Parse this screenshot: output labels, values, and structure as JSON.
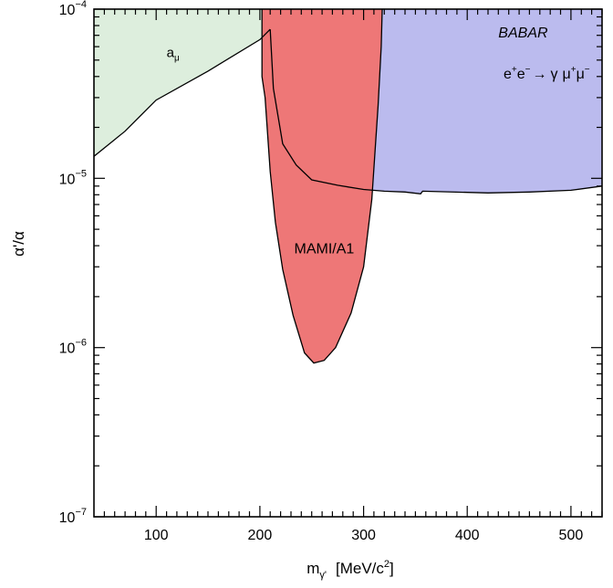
{
  "chart_data": {
    "type": "area",
    "title": "",
    "xlabel": {
      "base": "m",
      "sub": "γ'",
      "unit_open": "[MeV/c",
      "unit_sup": "2",
      "unit_close": "]"
    },
    "ylabel": "α'/α",
    "xlim": [
      40,
      530
    ],
    "ylim": [
      1e-07,
      0.0001
    ],
    "yscale": "log",
    "grid": false,
    "x_ticks": [
      100,
      200,
      300,
      400,
      500
    ],
    "x_tick_labels": [
      "100",
      "200",
      "300",
      "400",
      "500"
    ],
    "y_ticks": [
      {
        "value": 1e-07,
        "base": "10",
        "exp": "−7"
      },
      {
        "value": 1e-06,
        "base": "10",
        "exp": "−6"
      },
      {
        "value": 1e-05,
        "base": "10",
        "exp": "−5"
      },
      {
        "value": 0.0001,
        "base": "10",
        "exp": "−4"
      }
    ],
    "series": [
      {
        "name": "a_mu",
        "color": "#ddeedd",
        "upper": "top",
        "boundary": [
          [
            40,
            1.35e-05
          ],
          [
            70,
            1.9e-05
          ],
          [
            100,
            2.9e-05
          ],
          [
            150,
            4.3e-05
          ],
          [
            200,
            6.6e-05
          ],
          [
            210,
            7.6e-05
          ]
        ]
      },
      {
        "name": "BABAR",
        "color": "#bbbbee",
        "upper": "top",
        "boundary": [
          [
            210,
            7.6e-05
          ],
          [
            213,
            3.4e-05
          ],
          [
            222,
            1.6e-05
          ],
          [
            235,
            1.2e-05
          ],
          [
            250,
            9.8e-06
          ],
          [
            275,
            9.1e-06
          ],
          [
            300,
            8.6e-06
          ],
          [
            320,
            8.4e-06
          ],
          [
            340,
            8.3e-06
          ],
          [
            355,
            8.1e-06
          ],
          [
            357,
            8.4e-06
          ],
          [
            420,
            8.2e-06
          ],
          [
            460,
            8.3e-06
          ],
          [
            500,
            8.5e-06
          ],
          [
            530,
            9e-06
          ]
        ]
      },
      {
        "name": "MAMI/A1",
        "color": "#ee7777",
        "boundary": [
          [
            202,
            0.0001
          ],
          [
            202,
            4e-05
          ],
          [
            205,
            3e-05
          ],
          [
            210,
            1.1e-05
          ],
          [
            215,
            5.5e-06
          ],
          [
            222,
            2.9e-06
          ],
          [
            232,
            1.55e-06
          ],
          [
            243,
            9.3e-07
          ],
          [
            252,
            8.1e-07
          ],
          [
            262,
            8.4e-07
          ],
          [
            273,
            1e-06
          ],
          [
            288,
            1.6e-06
          ],
          [
            300,
            3e-06
          ],
          [
            308,
            7.5e-06
          ],
          [
            314,
            2.7e-05
          ],
          [
            317,
            6e-05
          ],
          [
            318,
            0.0001
          ]
        ]
      }
    ],
    "annotations": {
      "amu": {
        "base": "a",
        "sub": "μ",
        "x": 110,
        "y": 5.2e-05
      },
      "babar_title": {
        "text": "BABAR",
        "x": 430,
        "y": 6.8e-05
      },
      "babar_process": {
        "e": "e",
        "e_plus": "+",
        "e_minus": "−",
        "arrow": "→",
        "gamma": "γ",
        "mu": "μ",
        "mu_plus": "+",
        "mu_minus": "−",
        "x": 435,
        "y": 3.9e-05
      },
      "mami": {
        "text": "MAMI/A1",
        "x": 262,
        "y": 3.6e-06
      }
    }
  }
}
